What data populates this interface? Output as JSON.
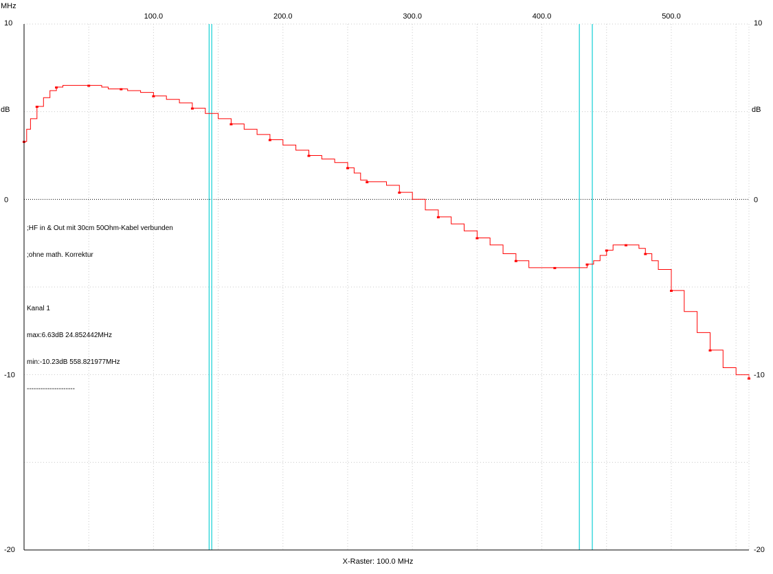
{
  "header": {
    "x_unit": "MHz"
  },
  "footer": {
    "raster_label": "X-Raster: 100.0 MHz"
  },
  "annotation": {
    "lines": [
      ";HF in & Out mit 30cm 50Ohm-Kabel verbunden",
      ";ohne math. Korrektur",
      "",
      "Kanal 1",
      "max:6.63dB 24.852442MHz",
      "min:-10.23dB 558.821977MHz",
      "---------------------"
    ]
  },
  "chart_data": {
    "type": "line",
    "xlabel": "MHz",
    "ylabel": "dB",
    "xlim": [
      0,
      560
    ],
    "ylim": [
      -20,
      10
    ],
    "x_ticks": [
      100,
      200,
      300,
      400,
      500
    ],
    "x_tick_labels": [
      "100.0",
      "200.0",
      "300.0",
      "400.0",
      "500.0"
    ],
    "y_ticks": [
      10,
      0,
      -10,
      -20
    ],
    "y_tick_labels": [
      "10",
      "0",
      "-10",
      "-20"
    ],
    "y_unit_label": "dB",
    "vertical_markers": [
      143,
      145,
      429,
      439
    ],
    "grid": true,
    "series": [
      {
        "color": "#ff0000",
        "x": [
          0,
          2,
          5,
          10,
          15,
          20,
          25,
          30,
          40,
          50,
          60,
          65,
          75,
          80,
          90,
          100,
          110,
          120,
          130,
          140,
          150,
          160,
          170,
          180,
          190,
          200,
          210,
          220,
          230,
          240,
          250,
          255,
          260,
          265,
          270,
          280,
          290,
          300,
          310,
          320,
          330,
          340,
          350,
          360,
          370,
          380,
          390,
          400,
          410,
          420,
          430,
          435,
          440,
          445,
          450,
          455,
          460,
          465,
          470,
          475,
          480,
          485,
          490,
          500,
          510,
          520,
          530,
          540,
          550,
          560
        ],
        "y": [
          3.3,
          4.0,
          4.6,
          5.3,
          5.8,
          6.2,
          6.4,
          6.5,
          6.5,
          6.5,
          6.4,
          6.3,
          6.3,
          6.2,
          6.1,
          5.9,
          5.7,
          5.5,
          5.2,
          4.9,
          4.6,
          4.3,
          4.0,
          3.7,
          3.4,
          3.1,
          2.8,
          2.5,
          2.3,
          2.1,
          1.8,
          1.5,
          1.1,
          1.0,
          1.0,
          0.8,
          0.4,
          0.0,
          -0.6,
          -1.0,
          -1.4,
          -1.8,
          -2.2,
          -2.6,
          -3.1,
          -3.5,
          -3.9,
          -3.9,
          -3.9,
          -3.9,
          -3.9,
          -3.7,
          -3.5,
          -3.2,
          -2.9,
          -2.6,
          -2.6,
          -2.6,
          -2.6,
          -2.8,
          -3.1,
          -3.5,
          -4.0,
          -5.2,
          -6.4,
          -7.6,
          -8.6,
          -9.6,
          -10.0,
          -10.2
        ]
      }
    ]
  }
}
